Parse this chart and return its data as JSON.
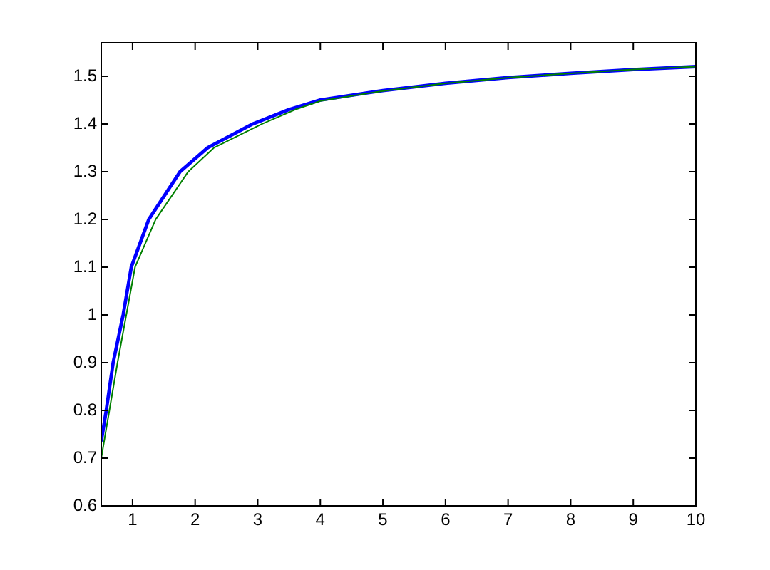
{
  "chart_data": {
    "type": "line",
    "xlim": [
      0.5,
      10
    ],
    "xticks": [
      1,
      2,
      3,
      4,
      5,
      6,
      7,
      8,
      9,
      10
    ],
    "ylim": [
      0.6,
      1.57
    ],
    "yticks": [
      0.6,
      0.7,
      0.8,
      0.9,
      1,
      1.1,
      1.2,
      1.3,
      1.4,
      1.5
    ],
    "grid": false,
    "marker": "none",
    "line_style": "solid",
    "series": [
      {
        "color": "#0000ff",
        "x": [
          0.5,
          0.58,
          0.69,
          0.85,
          0.98,
          1.26,
          1.76,
          2.2,
          2.92,
          3.5,
          4,
          5,
          6,
          7,
          8,
          9,
          10
        ],
        "values": [
          0.735,
          0.8,
          0.9,
          1,
          1.1,
          1.2,
          1.3,
          1.35,
          1.4,
          1.43,
          1.45,
          1.47,
          1.485,
          1.497,
          1.506,
          1.514,
          1.52
        ]
      },
      {
        "color": "#008000",
        "x": [
          0.5,
          0.63,
          0.76,
          0.9,
          1.04,
          1.37,
          1.89,
          2.3,
          3.07,
          3.6,
          4,
          5,
          6,
          7,
          8,
          9,
          10
        ],
        "values": [
          0.7,
          0.8,
          0.9,
          1,
          1.1,
          1.2,
          1.3,
          1.35,
          1.4,
          1.43,
          1.448,
          1.469,
          1.485,
          1.497,
          1.506,
          1.514,
          1.52
        ]
      }
    ]
  }
}
